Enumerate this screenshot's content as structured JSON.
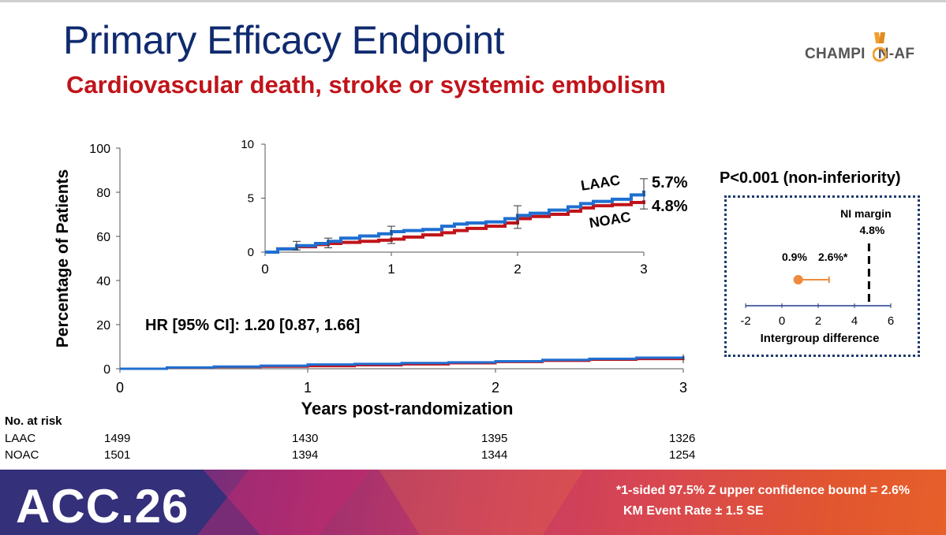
{
  "slide": {
    "title": "Primary Efficacy Endpoint",
    "subtitle": "Cardiovascular death, stroke or systemic embolism",
    "logo_text": "CHAMPION-AF",
    "logo_text_left": "CHAMPI",
    "logo_text_right": "N-AF",
    "p_value": "P<0.001 (non-inferiority)",
    "hr_text": "HR [95% CI]: 1.20 [0.87, 1.66]",
    "banner_logo": "ACC.26",
    "footnote1": "*1-sided 97.5% Z upper confidence bound = 2.6%",
    "footnote2": "KM Event Rate ± 1.5 SE",
    "colors": {
      "title": "#0f2a6e",
      "subtitle": "#c0141a",
      "laac": "#1f6fd1",
      "noac": "#c0141a",
      "estimate": "#f08a3c"
    }
  },
  "risk_table": {
    "heading": "No. at risk",
    "rows": [
      {
        "label": "LAAC",
        "values": [
          "1499",
          "1430",
          "1395",
          "1326"
        ]
      },
      {
        "label": "NOAC",
        "values": [
          "1501",
          "1394",
          "1344",
          "1254"
        ]
      }
    ]
  },
  "chart_data": [
    {
      "type": "line",
      "name": "main-km",
      "ylabel": "Percentage of Patients",
      "xlabel": "Years post-randomization",
      "xlim": [
        0,
        3
      ],
      "ylim": [
        0,
        100
      ],
      "xticks": [
        "0",
        "1",
        "2",
        "3"
      ],
      "yticks": [
        "0",
        "20",
        "40",
        "60",
        "80",
        "100"
      ],
      "x": [
        0,
        0.25,
        0.5,
        0.75,
        1,
        1.25,
        1.5,
        1.75,
        2,
        2.25,
        2.5,
        2.75,
        3
      ],
      "series": [
        {
          "name": "LAAC",
          "values": [
            0,
            0.6,
            1.0,
            1.4,
            1.9,
            2.2,
            2.6,
            2.9,
            3.4,
            4.0,
            4.5,
            5.0,
            5.7
          ]
        },
        {
          "name": "NOAC",
          "values": [
            0,
            0.5,
            0.8,
            1.0,
            1.2,
            1.6,
            2.0,
            2.5,
            3.1,
            3.6,
            4.1,
            4.4,
            4.8
          ]
        }
      ]
    },
    {
      "type": "line",
      "name": "inset-km",
      "xlim": [
        0,
        3
      ],
      "ylim": [
        0,
        10
      ],
      "xticks": [
        "0",
        "1",
        "2",
        "3"
      ],
      "yticks": [
        "0",
        "5",
        "10"
      ],
      "x": [
        0,
        0.1,
        0.25,
        0.4,
        0.5,
        0.6,
        0.75,
        0.9,
        1,
        1.1,
        1.25,
        1.4,
        1.5,
        1.6,
        1.75,
        1.9,
        2,
        2.1,
        2.25,
        2.4,
        2.5,
        2.6,
        2.75,
        2.9,
        3
      ],
      "series": [
        {
          "name": "LAAC",
          "label": "LAAC",
          "end_label": "5.7%",
          "values": [
            0,
            0.3,
            0.6,
            0.8,
            1.0,
            1.3,
            1.5,
            1.7,
            1.9,
            2.0,
            2.1,
            2.4,
            2.6,
            2.7,
            2.8,
            3.1,
            3.4,
            3.6,
            3.9,
            4.2,
            4.5,
            4.7,
            4.9,
            5.3,
            5.7
          ]
        },
        {
          "name": "NOAC",
          "label": "NOAC",
          "end_label": "4.8%",
          "values": [
            0,
            0.3,
            0.5,
            0.7,
            0.8,
            0.9,
            1.0,
            1.1,
            1.2,
            1.4,
            1.6,
            1.8,
            2.0,
            2.2,
            2.4,
            2.7,
            3.1,
            3.3,
            3.5,
            3.8,
            4.1,
            4.3,
            4.4,
            4.6,
            4.8
          ]
        }
      ],
      "error_bars": [
        {
          "x": 0.25,
          "low": 0.2,
          "high": 1.0
        },
        {
          "x": 0.5,
          "low": 0.4,
          "high": 1.3
        },
        {
          "x": 1,
          "low": 0.8,
          "high": 2.4
        },
        {
          "x": 2,
          "low": 2.2,
          "high": 4.3
        },
        {
          "x": 3,
          "low": 4.0,
          "high": 6.8
        }
      ]
    },
    {
      "type": "scatter",
      "name": "ni-forest",
      "xlabel": "Intergroup difference",
      "xlim": [
        -2,
        6
      ],
      "xticks": [
        "-2",
        "0",
        "2",
        "4",
        "6"
      ],
      "estimate": 0.9,
      "upper_bound": 2.6,
      "estimate_label": "0.9%",
      "upper_label": "2.6%*",
      "ni_margin": 4.8,
      "ni_margin_label": "NI margin",
      "ni_margin_value": "4.8%"
    }
  ]
}
